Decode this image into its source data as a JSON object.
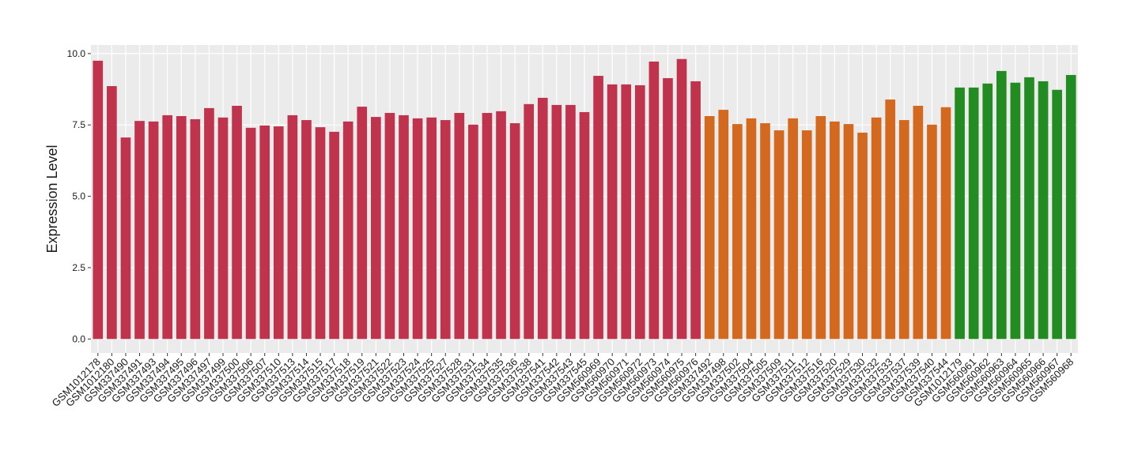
{
  "chart_data": {
    "type": "bar",
    "y_label": "Expression Level",
    "categories": [
      "GSM1012178",
      "GSM1012180",
      "GSM337490",
      "GSM337491",
      "GSM337493",
      "GSM337494",
      "GSM337495",
      "GSM337496",
      "GSM337497",
      "GSM337499",
      "GSM337500",
      "GSM337506",
      "GSM337507",
      "GSM337510",
      "GSM337513",
      "GSM337514",
      "GSM337515",
      "GSM337517",
      "GSM337518",
      "GSM337519",
      "GSM337521",
      "GSM337522",
      "GSM337523",
      "GSM337524",
      "GSM337525",
      "GSM337527",
      "GSM337528",
      "GSM337531",
      "GSM337534",
      "GSM337535",
      "GSM337536",
      "GSM337538",
      "GSM337541",
      "GSM337542",
      "GSM337543",
      "GSM337545",
      "GSM560969",
      "GSM560970",
      "GSM560971",
      "GSM560972",
      "GSM560973",
      "GSM560974",
      "GSM560975",
      "GSM560976",
      "GSM337492",
      "GSM337498",
      "GSM337502",
      "GSM337504",
      "GSM337505",
      "GSM337509",
      "GSM337511",
      "GSM337512",
      "GSM337516",
      "GSM337520",
      "GSM337529",
      "GSM337530",
      "GSM337532",
      "GSM337533",
      "GSM337537",
      "GSM337539",
      "GSM337540",
      "GSM337544",
      "GSM1012179",
      "GSM560961",
      "GSM560962",
      "GSM560963",
      "GSM560964",
      "GSM560965",
      "GSM560966",
      "GSM560967",
      "GSM560968"
    ],
    "values": [
      9.75,
      8.86,
      7.06,
      7.64,
      7.62,
      7.84,
      7.81,
      7.7,
      8.09,
      7.76,
      8.17,
      7.4,
      7.48,
      7.45,
      7.84,
      7.67,
      7.42,
      7.26,
      7.62,
      8.14,
      7.78,
      7.92,
      7.84,
      7.73,
      7.76,
      7.67,
      7.92,
      7.51,
      7.92,
      7.98,
      7.56,
      8.23,
      8.45,
      8.2,
      8.2,
      7.95,
      9.22,
      8.92,
      8.92,
      8.89,
      9.72,
      9.14,
      9.81,
      9.03,
      7.81,
      8.03,
      7.53,
      7.73,
      7.56,
      7.31,
      7.73,
      7.31,
      7.81,
      7.62,
      7.53,
      7.23,
      7.76,
      8.39,
      7.67,
      8.17,
      7.51,
      8.12,
      8.81,
      8.81,
      8.95,
      9.39,
      8.98,
      9.17,
      9.03,
      8.73,
      9.25
    ],
    "colors": [
      "#c0334d",
      "#c0334d",
      "#c0334d",
      "#c0334d",
      "#c0334d",
      "#c0334d",
      "#c0334d",
      "#c0334d",
      "#c0334d",
      "#c0334d",
      "#c0334d",
      "#c0334d",
      "#c0334d",
      "#c0334d",
      "#c0334d",
      "#c0334d",
      "#c0334d",
      "#c0334d",
      "#c0334d",
      "#c0334d",
      "#c0334d",
      "#c0334d",
      "#c0334d",
      "#c0334d",
      "#c0334d",
      "#c0334d",
      "#c0334d",
      "#c0334d",
      "#c0334d",
      "#c0334d",
      "#c0334d",
      "#c0334d",
      "#c0334d",
      "#c0334d",
      "#c0334d",
      "#c0334d",
      "#c0334d",
      "#c0334d",
      "#c0334d",
      "#c0334d",
      "#c0334d",
      "#c0334d",
      "#c0334d",
      "#c0334d",
      "#d2691e",
      "#d2691e",
      "#d2691e",
      "#d2691e",
      "#d2691e",
      "#d2691e",
      "#d2691e",
      "#d2691e",
      "#d2691e",
      "#d2691e",
      "#d2691e",
      "#d2691e",
      "#d2691e",
      "#d2691e",
      "#d2691e",
      "#d2691e",
      "#d2691e",
      "#d2691e",
      "#228b22",
      "#228b22",
      "#228b22",
      "#228b22",
      "#228b22",
      "#228b22",
      "#228b22",
      "#228b22",
      "#228b22"
    ],
    "ylim": [
      -0.49,
      10.3
    ],
    "yticks": [
      {
        "value": 0,
        "label": "0.0"
      },
      {
        "value": 2.5,
        "label": "2.5"
      },
      {
        "value": 5,
        "label": "5.0"
      },
      {
        "value": 7.5,
        "label": "7.5"
      },
      {
        "value": 10,
        "label": "10.0"
      }
    ],
    "grid": true
  }
}
